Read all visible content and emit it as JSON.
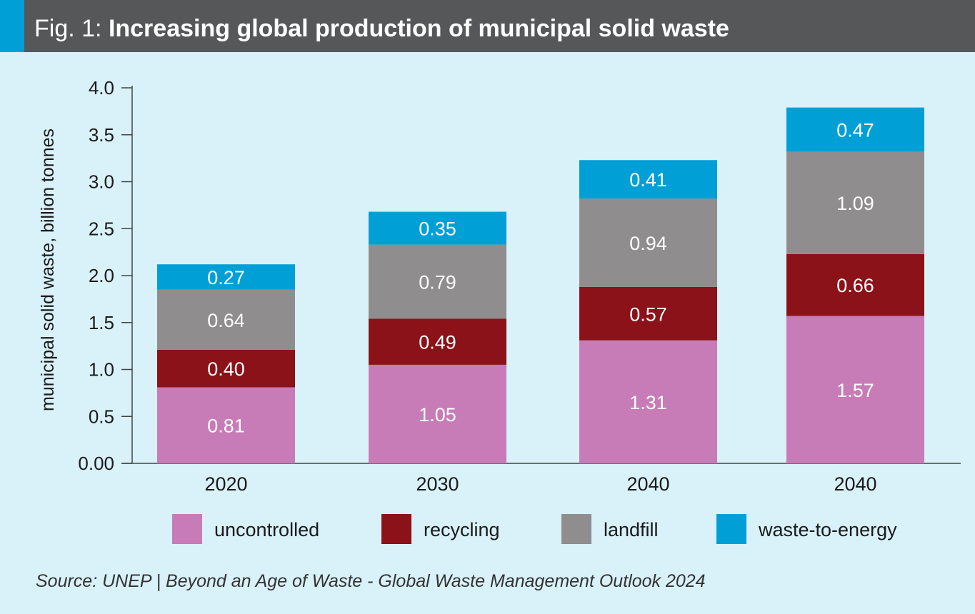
{
  "header": {
    "fig_label": "Fig. 1:",
    "title": "Increasing global production of municipal solid waste"
  },
  "source": "Source: UNEP | Beyond an Age of Waste - Global Waste Management Outlook 2024",
  "colors": {
    "background": "#d9f1f9",
    "header": "#565759",
    "accent": "#009fd6",
    "uncontrolled": "#c77bb7",
    "recycling": "#8a1218",
    "landfill": "#8f8d8e",
    "waste_to_energy": "#009fd6"
  },
  "chart_data": {
    "type": "bar",
    "stacked": true,
    "title": "Increasing global production of municipal solid waste",
    "ylabel": "municipal solid waste, billion tonnes",
    "xlabel": "",
    "ylim": [
      0,
      4.0
    ],
    "y_ticks": [
      "0.00",
      "0.5",
      "1.0",
      "1.5",
      "2.0",
      "2.5",
      "3.0",
      "3.5",
      "4.0"
    ],
    "categories": [
      "2020",
      "2030",
      "2040",
      "2040"
    ],
    "series": [
      {
        "name": "uncontrolled",
        "values": [
          0.81,
          1.05,
          1.31,
          1.57
        ],
        "labels": [
          "0.81",
          "1.05",
          "1.31",
          "1.57"
        ]
      },
      {
        "name": "recycling",
        "values": [
          0.4,
          0.49,
          0.57,
          0.66
        ],
        "labels": [
          "0.40",
          "0.49",
          "0.57",
          "0.66"
        ]
      },
      {
        "name": "landfill",
        "values": [
          0.64,
          0.79,
          0.94,
          1.09
        ],
        "labels": [
          "0.64",
          "0.79",
          "0.94",
          "1.09"
        ]
      },
      {
        "name": "waste-to-energy",
        "values": [
          0.27,
          0.35,
          0.41,
          0.47
        ],
        "labels": [
          "0.27",
          "0.35",
          "0.41",
          "0.47"
        ]
      }
    ],
    "legend_position": "bottom",
    "grid": false
  }
}
